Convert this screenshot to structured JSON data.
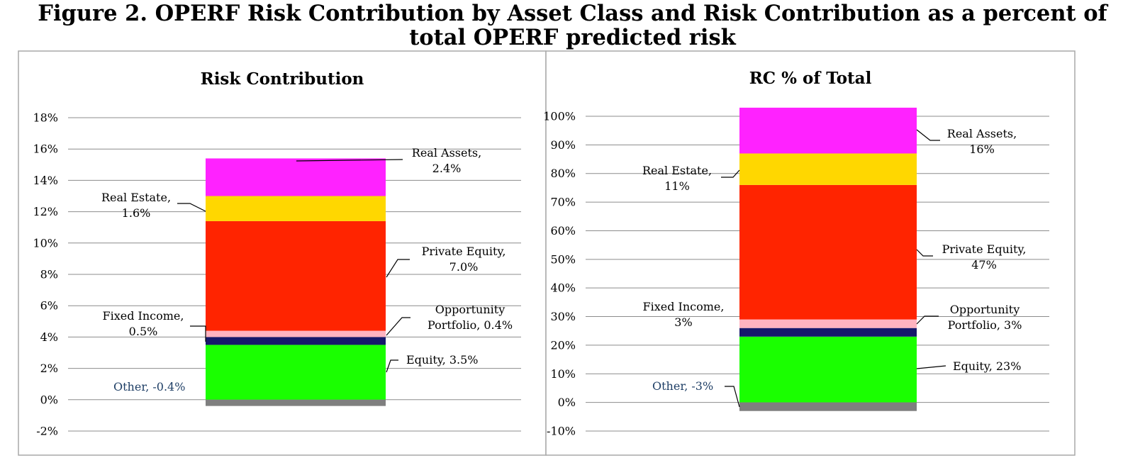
{
  "figure": {
    "title_line1": "Figure 2. OPERF Risk Contribution by Asset Class and Risk Contribution as a percent of",
    "title_line2": "total OPERF predicted risk"
  },
  "colors": {
    "Equity": "#1aff00",
    "Fixed Income": "#15186b",
    "Opportunity Portfolio": "#ffb3c0",
    "Private Equity": "#ff2400",
    "Real Estate": "#ffd700",
    "Real Assets": "#ff22ff",
    "Other": "#7f7f7f",
    "other_label": "#1f3f66"
  },
  "chart_data": [
    {
      "type": "bar",
      "stacked": true,
      "title": "Risk Contribution",
      "ylim": [
        -2,
        18
      ],
      "ytick_step": 2,
      "ytick_suffix": "%",
      "grid": true,
      "series": [
        {
          "name": "Equity",
          "value": 3.5,
          "label_line1": "Equity, 3.5%",
          "label_line2": ""
        },
        {
          "name": "Fixed Income",
          "value": 0.5,
          "label_line1": "Fixed Income,",
          "label_line2": "0.5%"
        },
        {
          "name": "Opportunity Portfolio",
          "value": 0.4,
          "label_line1": "Opportunity",
          "label_line2": "Portfolio, 0.4%"
        },
        {
          "name": "Private Equity",
          "value": 7.0,
          "label_line1": "Private Equity,",
          "label_line2": "7.0%"
        },
        {
          "name": "Real Estate",
          "value": 1.6,
          "label_line1": "Real Estate,",
          "label_line2": "1.6%"
        },
        {
          "name": "Real Assets",
          "value": 2.4,
          "label_line1": "Real Assets,",
          "label_line2": "2.4%"
        },
        {
          "name": "Other",
          "value": -0.4,
          "label_line1": "Other, -0.4%",
          "label_line2": ""
        }
      ]
    },
    {
      "type": "bar",
      "stacked": true,
      "title": "RC % of Total",
      "ylim": [
        -10,
        100
      ],
      "ytick_step": 10,
      "ytick_suffix": "%",
      "grid": true,
      "series": [
        {
          "name": "Equity",
          "value": 23,
          "label_line1": "Equity, 23%",
          "label_line2": ""
        },
        {
          "name": "Fixed Income",
          "value": 3,
          "label_line1": "Fixed Income,",
          "label_line2": "3%"
        },
        {
          "name": "Opportunity Portfolio",
          "value": 3,
          "label_line1": "Opportunity",
          "label_line2": "Portfolio, 3%"
        },
        {
          "name": "Private Equity",
          "value": 47,
          "label_line1": "Private Equity,",
          "label_line2": "47%"
        },
        {
          "name": "Real Estate",
          "value": 11,
          "label_line1": "Real Estate,",
          "label_line2": "11%"
        },
        {
          "name": "Real Assets",
          "value": 16,
          "label_line1": "Real Assets,",
          "label_line2": "16%"
        },
        {
          "name": "Other",
          "value": -3,
          "label_line1": "Other, -3%",
          "label_line2": ""
        }
      ]
    }
  ]
}
